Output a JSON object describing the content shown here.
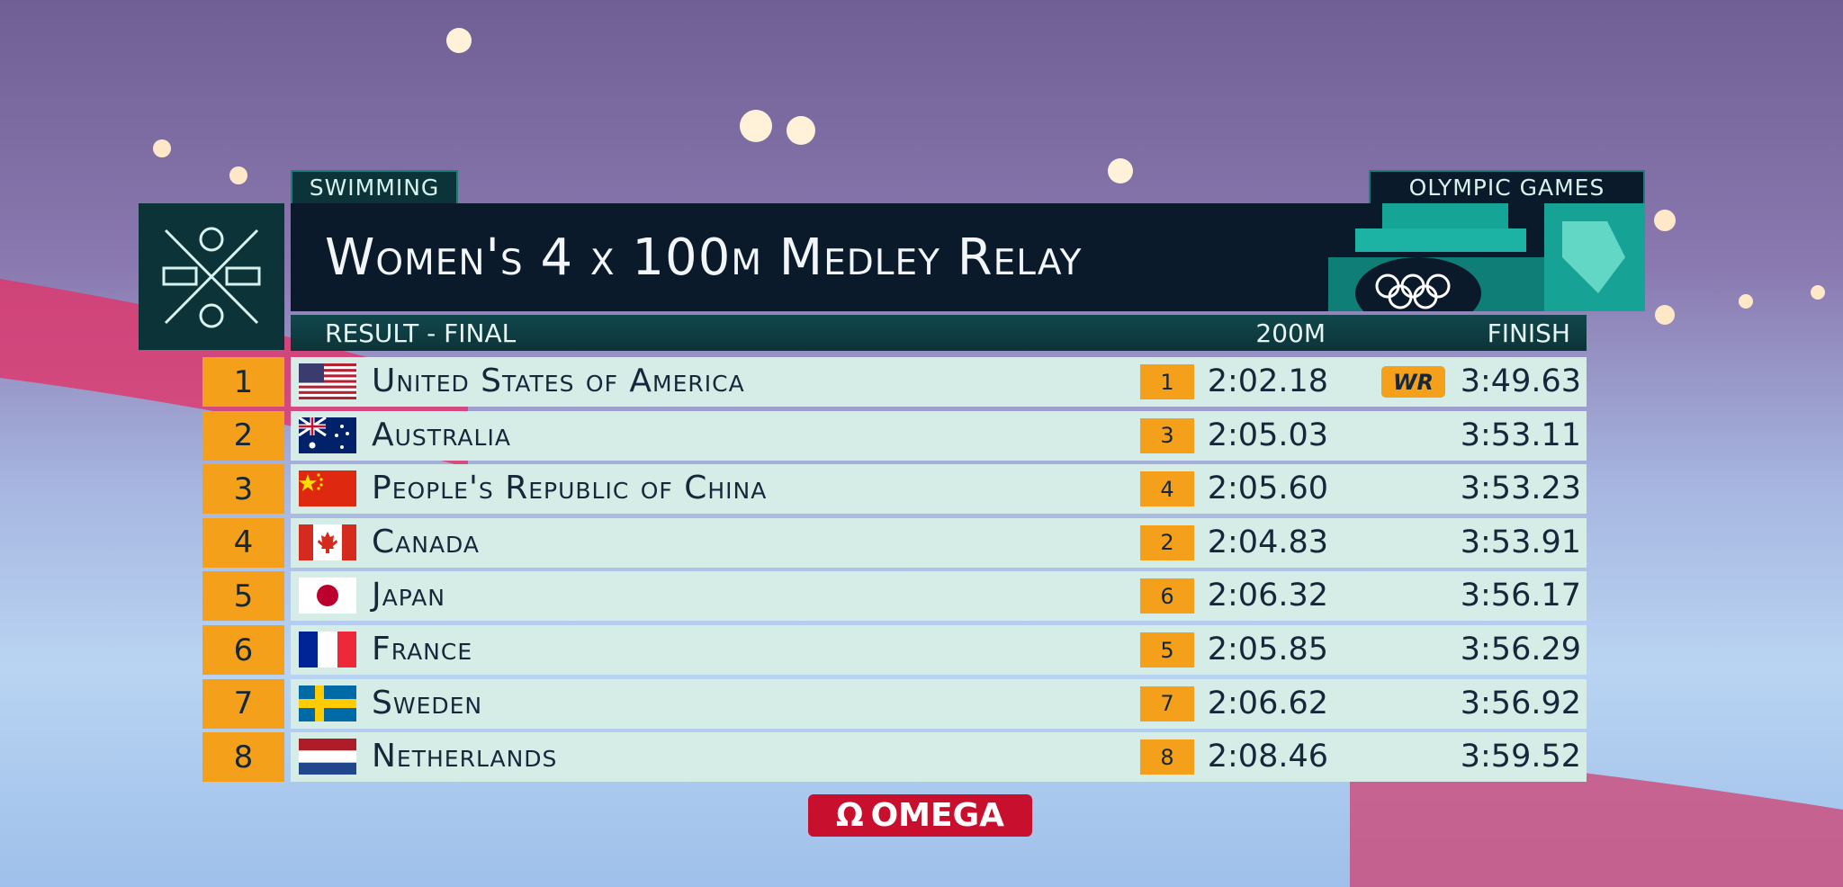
{
  "header": {
    "sport": "SWIMMING",
    "title": "Women's 4 x 100m Medley Relay",
    "brand": "OLYMPIC GAMES"
  },
  "subheader": {
    "stage": "RESULT - FINAL",
    "split_label": "200M",
    "finish_label": "FINISH"
  },
  "table": {
    "rows": [
      {
        "rank": "1",
        "country": "United States of America",
        "split_rank": "1",
        "split_time": "2:02.18",
        "record": "WR",
        "finish": "3:49.63"
      },
      {
        "rank": "2",
        "country": "Australia",
        "split_rank": "3",
        "split_time": "2:05.03",
        "finish": "3:53.11"
      },
      {
        "rank": "3",
        "country": "People's Republic of China",
        "split_rank": "4",
        "split_time": "2:05.60",
        "finish": "3:53.23"
      },
      {
        "rank": "4",
        "country": "Canada",
        "split_rank": "2",
        "split_time": "2:04.83",
        "finish": "3:53.91"
      },
      {
        "rank": "5",
        "country": "Japan",
        "split_rank": "6",
        "split_time": "2:06.32",
        "finish": "3:56.17"
      },
      {
        "rank": "6",
        "country": "France",
        "split_rank": "5",
        "split_time": "2:05.85",
        "finish": "3:56.29"
      },
      {
        "rank": "7",
        "country": "Sweden",
        "split_rank": "7",
        "split_time": "2:06.62",
        "finish": "3:56.92"
      },
      {
        "rank": "8",
        "country": "Netherlands",
        "split_rank": "8",
        "split_time": "2:08.46",
        "finish": "3:59.52"
      }
    ]
  },
  "sponsor": "OMEGA"
}
